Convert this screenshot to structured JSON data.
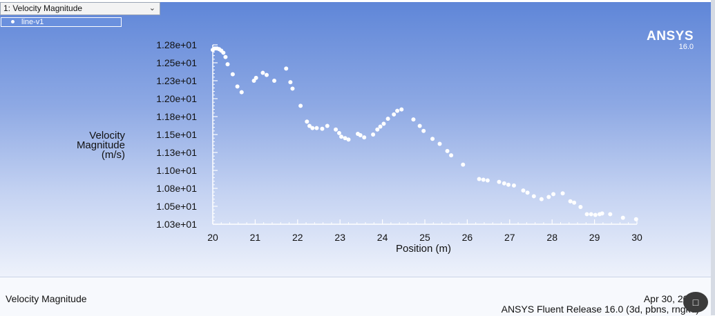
{
  "window": {
    "selector_value": "1: Velocity Magnitude",
    "legend_label": "line-v1",
    "brand": "ANSYS",
    "brand_version": "16.0"
  },
  "footer": {
    "title": "Velocity Magnitude",
    "date": "Apr 30, 2015",
    "release": "ANSYS Fluent Release 16.0 (3d, pbns, rngke)"
  },
  "colors": {
    "accent": "#6a90de",
    "points": "#ffffff"
  },
  "icons": [
    "chevron-down-icon",
    "chat-icon"
  ],
  "chart_data": {
    "type": "scatter",
    "title": "",
    "xlabel": "Position (m)",
    "ylabel": "Velocity Magnitude (m/s)",
    "ylabel_lines": [
      "Velocity",
      "Magnitude",
      "(m/s)"
    ],
    "xlim": [
      20,
      30
    ],
    "ylim": [
      10.3,
      12.8
    ],
    "xticks": [
      20,
      21,
      22,
      23,
      24,
      25,
      26,
      27,
      28,
      29,
      30
    ],
    "xtick_labels": [
      "20",
      "21",
      "22",
      "23",
      "24",
      "25",
      "26",
      "27",
      "28",
      "29",
      "30"
    ],
    "yticks": [
      10.3,
      10.55,
      10.8,
      11.05,
      11.3,
      11.55,
      11.8,
      12.05,
      12.3,
      12.55,
      12.8
    ],
    "ytick_labels": [
      "1.03e+01",
      "1.05e+01",
      "1.08e+01",
      "1.10e+01",
      "1.13e+01",
      "1.15e+01",
      "1.18e+01",
      "1.20e+01",
      "1.23e+01",
      "1.25e+01",
      "1.28e+01"
    ],
    "grid": false,
    "legend_position": "top-left",
    "series": [
      {
        "name": "line-v1",
        "x": [
          20.0,
          20.05,
          20.1,
          20.15,
          20.2,
          20.25,
          20.3,
          20.35,
          20.47,
          20.58,
          20.68,
          20.97,
          21.02,
          21.18,
          21.27,
          21.45,
          21.73,
          21.83,
          21.88,
          22.07,
          22.22,
          22.28,
          22.35,
          22.45,
          22.58,
          22.7,
          22.9,
          22.98,
          23.03,
          23.12,
          23.2,
          23.42,
          23.48,
          23.57,
          23.78,
          23.88,
          23.95,
          24.03,
          24.13,
          24.27,
          24.35,
          24.45,
          24.73,
          24.88,
          24.97,
          25.18,
          25.35,
          25.53,
          25.62,
          25.9,
          26.28,
          26.38,
          26.48,
          26.75,
          26.87,
          26.97,
          27.1,
          27.32,
          27.42,
          27.57,
          27.75,
          27.92,
          28.03,
          28.25,
          28.43,
          28.52,
          28.67,
          28.82,
          28.92,
          29.02,
          29.12,
          29.18,
          29.37,
          29.67,
          29.98
        ],
        "y": [
          12.73,
          12.75,
          12.75,
          12.74,
          12.72,
          12.69,
          12.63,
          12.53,
          12.39,
          12.22,
          12.14,
          12.3,
          12.34,
          12.41,
          12.38,
          12.3,
          12.47,
          12.28,
          12.19,
          11.95,
          11.73,
          11.67,
          11.64,
          11.64,
          11.63,
          11.67,
          11.62,
          11.57,
          11.52,
          11.5,
          11.48,
          11.56,
          11.54,
          11.51,
          11.55,
          11.62,
          11.66,
          11.7,
          11.77,
          11.83,
          11.88,
          11.9,
          11.76,
          11.67,
          11.6,
          11.49,
          11.42,
          11.32,
          11.26,
          11.13,
          10.93,
          10.92,
          10.91,
          10.89,
          10.87,
          10.85,
          10.84,
          10.77,
          10.74,
          10.69,
          10.65,
          10.68,
          10.72,
          10.73,
          10.62,
          10.6,
          10.54,
          10.44,
          10.44,
          10.43,
          10.44,
          10.45,
          10.44,
          10.39,
          10.37
        ]
      }
    ]
  }
}
